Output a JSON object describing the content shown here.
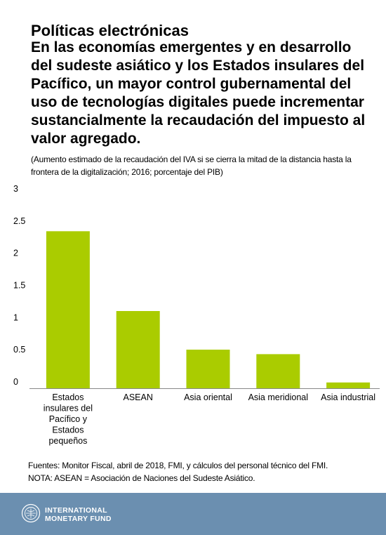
{
  "header": {
    "title": "Políticas electrónicas",
    "subtitle": "En las economías emergentes y en desarrollo del sudeste asiático y los Estados insulares del Pacífico, un mayor control gubernamental del uso de tecnologías digitales puede incrementar sustancialmente la recaudación del impuesto al valor agregado.",
    "note": "(Aumento estimado de la recaudación del IVA si se cierra la mitad de la distancia hasta la frontera de la digitalización; 2016; porcentaje del PIB)"
  },
  "chart_data": {
    "type": "bar",
    "categories": [
      [
        "Estados",
        "insulares del",
        "Pacífico y",
        "Estados",
        "pequeños"
      ],
      [
        "ASEAN"
      ],
      [
        "Asia oriental"
      ],
      [
        "Asia meridional"
      ],
      [
        "Asia industrial"
      ]
    ],
    "values": [
      2.44,
      1.2,
      0.6,
      0.53,
      0.09
    ],
    "ylim": [
      0,
      3
    ],
    "yticks": [
      "0",
      "0.5",
      "1",
      "1.5",
      "2",
      "2.5",
      "3"
    ],
    "bar_color": "#aacc00",
    "grid": false
  },
  "footer": {
    "sources": "Fuentes: Monitor Fiscal, abril de 2018, FMI, y cálculos del personal técnico del FMI.",
    "nota": "NOTA: ASEAN = Asociación de Naciones del Sudeste Asiático.",
    "org_line1": "INTERNATIONAL",
    "org_line2": "MONETARY FUND",
    "band_color": "#6b8fb0"
  }
}
